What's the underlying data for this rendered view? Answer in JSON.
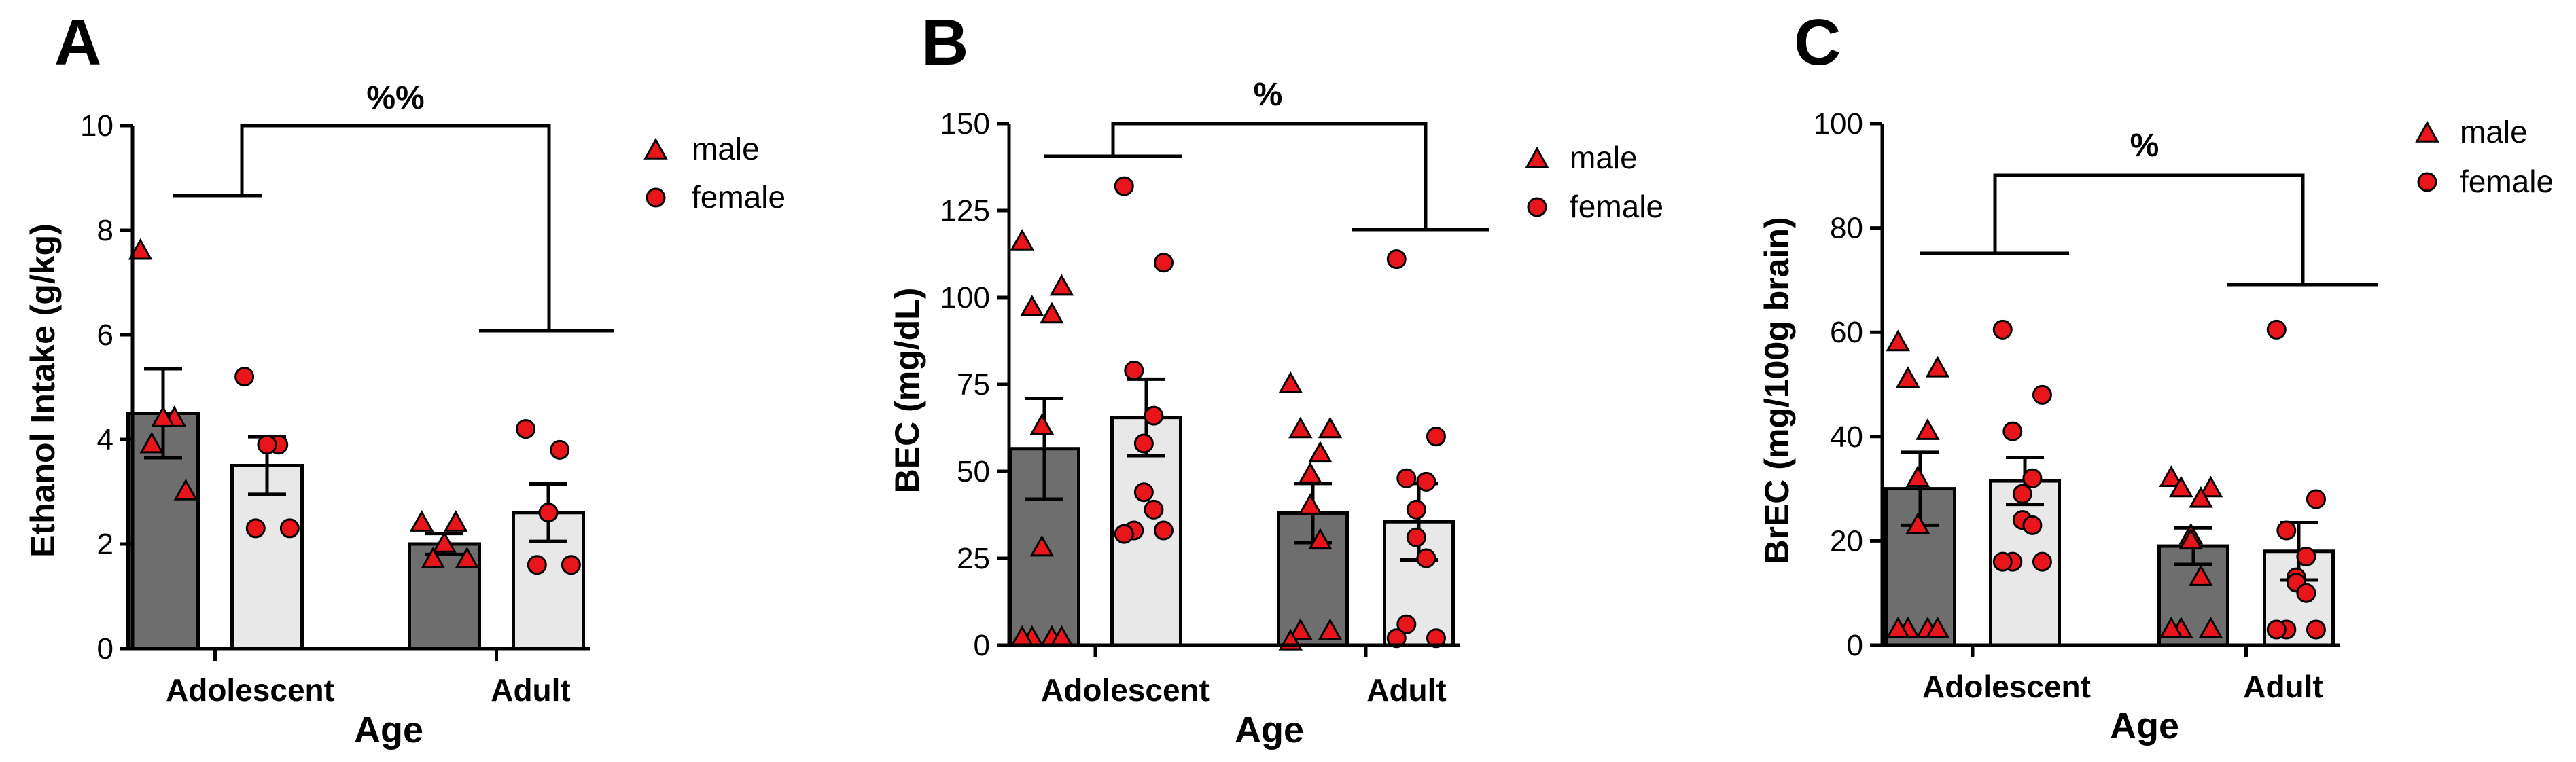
{
  "colors": {
    "bar_male": "#6e6e6e",
    "bar_female": "#e8e8e8",
    "marker": "#e8151b",
    "axis": "#000000"
  },
  "chart_data": [
    {
      "panel": "A",
      "type": "bar",
      "xlabel": "Age",
      "ylabel": "Ethanol Intake (g/kg)",
      "ylim": [
        0,
        10
      ],
      "yticks": [
        0,
        2,
        4,
        6,
        8,
        10
      ],
      "categories": [
        "Adolescent",
        "Adult"
      ],
      "legend": [
        {
          "marker": "triangle",
          "label": "male"
        },
        {
          "marker": "circle",
          "label": "female"
        }
      ],
      "significance": "%%",
      "series": [
        {
          "name": "male",
          "values": [
            4.5,
            2.0
          ],
          "sem": [
            0.85,
            0.2
          ],
          "points": [
            [
              7.6,
              4.4,
              4.4,
              3.9,
              3.0
            ],
            [
              2.4,
              2.4,
              2.0,
              1.7,
              1.7
            ]
          ]
        },
        {
          "name": "female",
          "values": [
            3.5,
            2.6
          ],
          "sem": [
            0.55,
            0.55
          ],
          "points": [
            [
              5.2,
              3.9,
              3.9,
              2.3,
              2.3
            ],
            [
              4.2,
              3.8,
              2.6,
              1.6,
              1.6
            ]
          ]
        }
      ]
    },
    {
      "panel": "B",
      "type": "bar",
      "xlabel": "Age",
      "ylabel": "BEC (mg/dL)",
      "ylim": [
        0,
        150
      ],
      "yticks": [
        0,
        25,
        50,
        75,
        100,
        125,
        150
      ],
      "categories": [
        "Adolescent",
        "Adult"
      ],
      "legend": [
        {
          "marker": "triangle",
          "label": "male"
        },
        {
          "marker": "circle",
          "label": "female"
        }
      ],
      "significance": "%",
      "series": [
        {
          "name": "male",
          "values": [
            56.5,
            38
          ],
          "sem": [
            14.5,
            8.5
          ],
          "points": [
            [
              116,
              103,
              97,
              95,
              63,
              28,
              2,
              2,
              2,
              2
            ],
            [
              75,
              62,
              62,
              55,
              49,
              40,
              30,
              4,
              4,
              1
            ]
          ]
        },
        {
          "name": "female",
          "values": [
            65.5,
            35.5
          ],
          "sem": [
            11,
            11
          ],
          "points": [
            [
              132,
              110,
              79,
              66,
              58,
              44,
              39,
              33,
              33,
              32
            ],
            [
              111,
              60,
              48,
              47,
              39,
              31,
              25,
              6,
              2,
              2
            ]
          ]
        }
      ]
    },
    {
      "panel": "C",
      "type": "bar",
      "xlabel": "Age",
      "ylabel": "BrEC (mg/100g brain)",
      "ylim": [
        0,
        100
      ],
      "yticks": [
        0,
        20,
        40,
        60,
        80,
        100
      ],
      "categories": [
        "Adolescent",
        "Adult"
      ],
      "legend": [
        {
          "marker": "triangle",
          "label": "male"
        },
        {
          "marker": "circle",
          "label": "female"
        }
      ],
      "significance": "%",
      "series": [
        {
          "name": "male",
          "values": [
            30,
            19
          ],
          "sem": [
            7,
            3.5
          ],
          "points": [
            [
              58,
              53,
              51,
              41,
              32,
              23,
              3,
              3,
              3,
              3
            ],
            [
              32,
              30,
              30,
              28,
              21,
              20,
              13,
              3,
              3,
              3
            ]
          ]
        },
        {
          "name": "female",
          "values": [
            31.5,
            18
          ],
          "sem": [
            4.5,
            5.5
          ],
          "points": [
            [
              60.5,
              48,
              41,
              32,
              29,
              24,
              23,
              16,
              16,
              16
            ],
            [
              60.5,
              28,
              22,
              17,
              13,
              12,
              10,
              3,
              3,
              3
            ]
          ]
        }
      ]
    }
  ]
}
